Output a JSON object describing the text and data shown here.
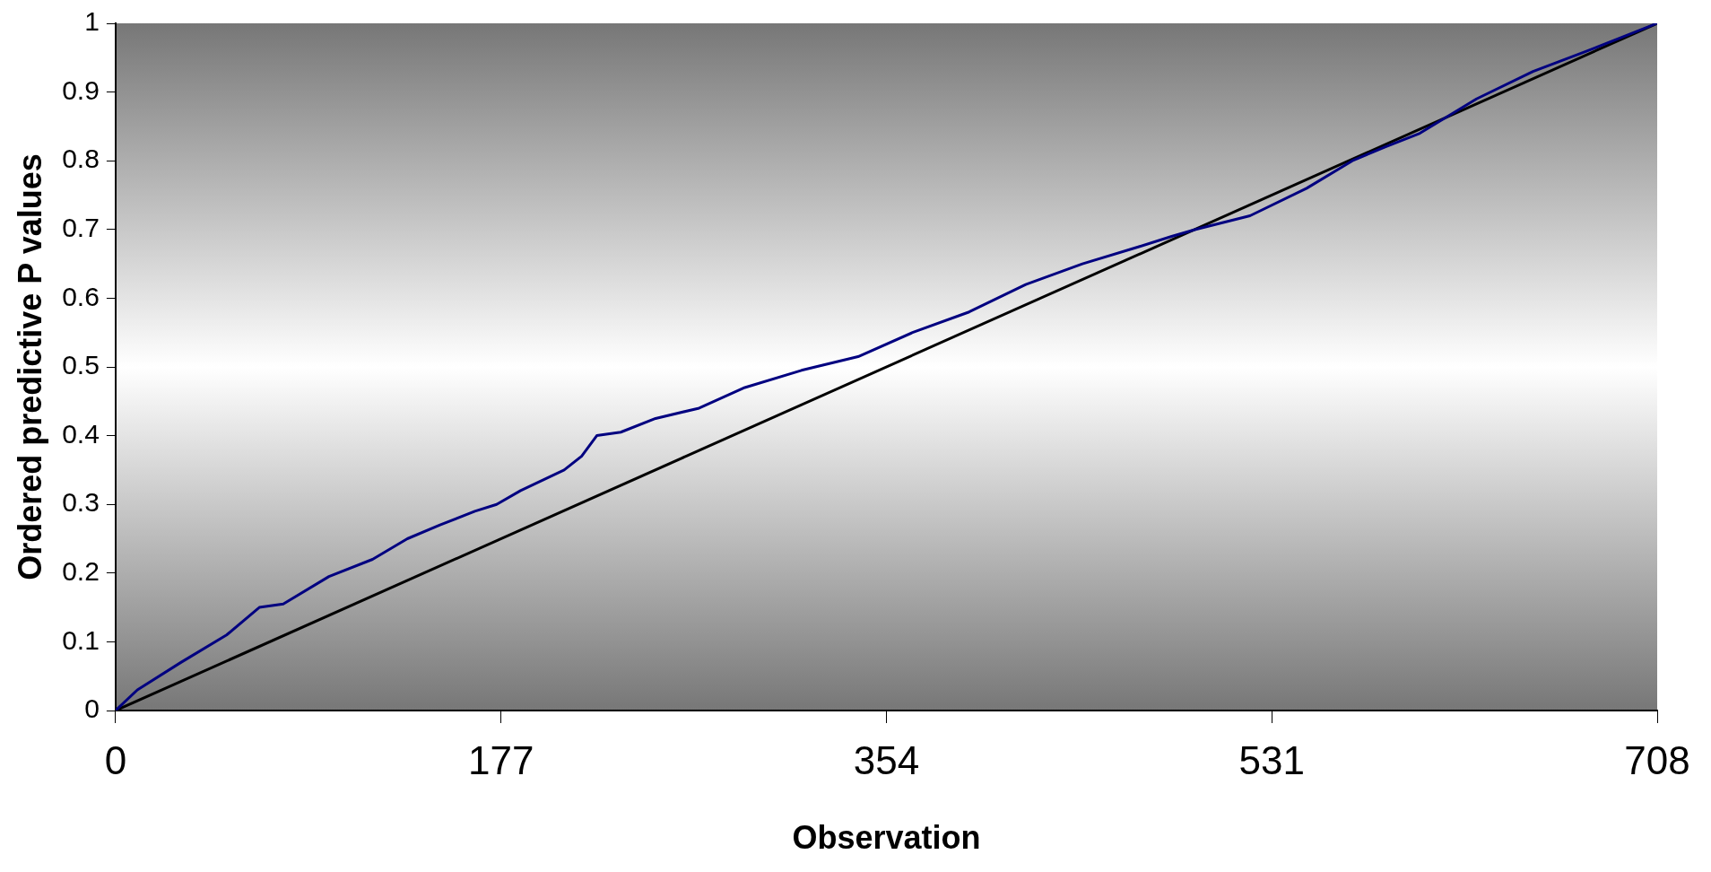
{
  "chart_data": {
    "type": "line",
    "xlabel": "Observation",
    "ylabel": "Ordered predictive P values",
    "xlim": [
      0,
      708
    ],
    "xticks": [
      0,
      177,
      354,
      531,
      708
    ],
    "ylim": [
      0,
      1
    ],
    "yticks": [
      0,
      0.1,
      0.2,
      0.3,
      0.4,
      0.5,
      0.6,
      0.7,
      0.8,
      0.9,
      1
    ],
    "grid": false,
    "legend": false,
    "series": [
      {
        "color": "#000080",
        "x": [
          0,
          10,
          30,
          51,
          66,
          77,
          98,
          118,
          134,
          149,
          165,
          175,
          186,
          206,
          214,
          221,
          232,
          248,
          268,
          289,
          315,
          341,
          366,
          392,
          418,
          444,
          470,
          485,
          496,
          521,
          547,
          568,
          583,
          599,
          625,
          651,
          676,
          708
        ],
        "values": [
          0,
          0.03,
          0.07,
          0.11,
          0.15,
          0.155,
          0.195,
          0.22,
          0.25,
          0.27,
          0.29,
          0.3,
          0.32,
          0.35,
          0.37,
          0.4,
          0.405,
          0.425,
          0.44,
          0.47,
          0.495,
          0.515,
          0.55,
          0.58,
          0.62,
          0.65,
          0.675,
          0.69,
          0.7,
          0.72,
          0.76,
          0.8,
          0.82,
          0.84,
          0.89,
          0.93,
          0.96,
          1
        ]
      },
      {
        "color": "#000000",
        "x": [
          0,
          708
        ],
        "values": [
          0,
          1
        ]
      }
    ]
  }
}
